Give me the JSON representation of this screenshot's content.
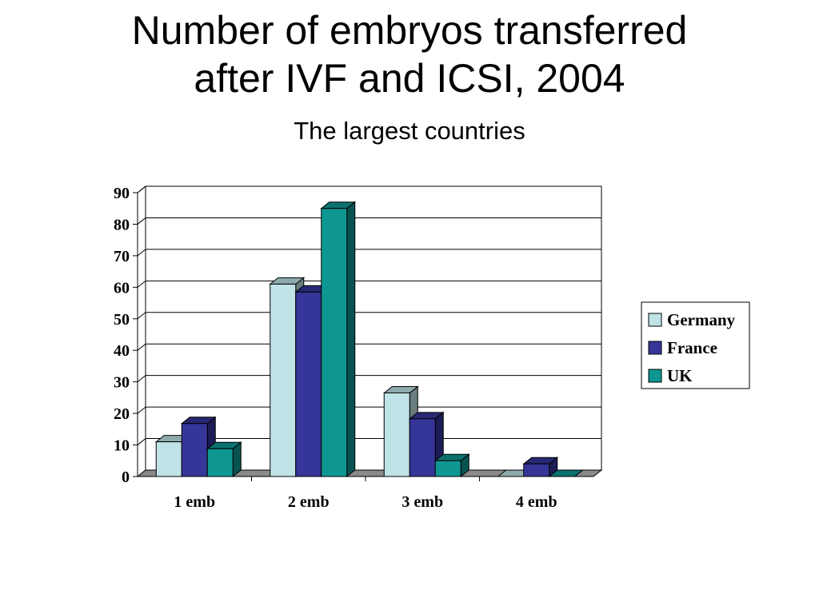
{
  "chart_data": {
    "type": "bar",
    "title_line1": "Number of embryos transferred",
    "title_line2": "after IVF and ICSI, 2004",
    "subtitle": "The largest countries",
    "xlabel": "",
    "ylabel": "",
    "categories": [
      "1 emb",
      "2 emb",
      "3 emb",
      "4 emb"
    ],
    "series": [
      {
        "name": "Germany",
        "values": [
          11,
          61,
          26.5,
          0
        ]
      },
      {
        "name": "France",
        "values": [
          16.8,
          58.5,
          18.3,
          4
        ]
      },
      {
        "name": "UK",
        "values": [
          8.8,
          85,
          5,
          0
        ]
      }
    ],
    "ylim": [
      0,
      90
    ],
    "yticks": [
      0,
      10,
      20,
      30,
      40,
      50,
      60,
      70,
      80,
      90
    ],
    "grid": true,
    "legend_position": "right",
    "three_d": true
  },
  "colors": {
    "Germany": "#bfe3e7",
    "France": "#35359a",
    "UK": "#0e9792",
    "floor": "#8a8a8a",
    "gridline": "#000000"
  }
}
